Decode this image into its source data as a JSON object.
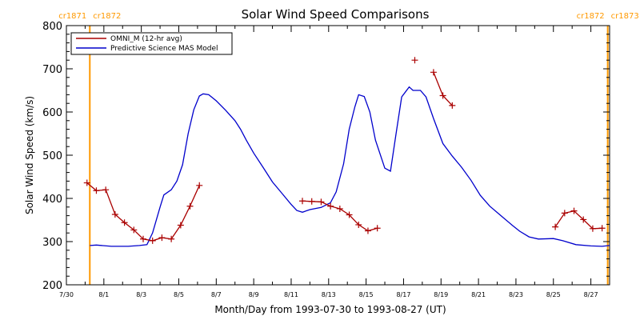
{
  "chart_data": {
    "type": "line",
    "title": "Solar Wind Speed Comparisons",
    "xlabel": "Month/Day from 1993-07-30 to 1993-08-27 (UT)",
    "ylabel": "Solar Wind Speed (km/s)",
    "x_unit": "day offset from 1993-07-30",
    "xlim": [
      0,
      29
    ],
    "ylim": [
      200,
      800
    ],
    "yticks": [
      200,
      300,
      400,
      500,
      600,
      700,
      800
    ],
    "xticks": [
      {
        "x": 0,
        "label": "7/30"
      },
      {
        "x": 2,
        "label": "8/1"
      },
      {
        "x": 4,
        "label": "8/3"
      },
      {
        "x": 6,
        "label": "8/5"
      },
      {
        "x": 8,
        "label": "8/7"
      },
      {
        "x": 10,
        "label": "8/9"
      },
      {
        "x": 12,
        "label": "8/11"
      },
      {
        "x": 14,
        "label": "8/13"
      },
      {
        "x": 16,
        "label": "8/15"
      },
      {
        "x": 18,
        "label": "8/17"
      },
      {
        "x": 20,
        "label": "8/19"
      },
      {
        "x": 22,
        "label": "8/21"
      },
      {
        "x": 24,
        "label": "8/23"
      },
      {
        "x": 26,
        "label": "8/25"
      },
      {
        "x": 28,
        "label": "8/27"
      }
    ],
    "legend": {
      "placement": "top-left"
    },
    "grid": false,
    "rotation_markers": [
      {
        "x": 1.25,
        "left_label": "cr1871",
        "right_label": "cr1872",
        "color": "#ff9900"
      },
      {
        "x": 28.9,
        "left_label": "cr1872",
        "right_label": "cr1873",
        "color": "#ff9900"
      }
    ],
    "series": [
      {
        "name": "OMNI_M (12-hr avg)",
        "color": "#aa0000",
        "marker": "plus",
        "segments": [
          [
            [
              1.1,
              436
            ],
            [
              1.6,
              418
            ],
            [
              2.1,
              420
            ],
            [
              2.6,
              363
            ],
            [
              3.1,
              344
            ],
            [
              3.6,
              327
            ],
            [
              4.1,
              306
            ],
            [
              4.6,
              302
            ],
            [
              5.1,
              309
            ],
            [
              5.6,
              306
            ],
            [
              6.1,
              338
            ],
            [
              6.6,
              382
            ],
            [
              7.1,
              430
            ]
          ],
          [
            [
              12.6,
              394
            ],
            [
              13.1,
              393
            ],
            [
              13.6,
              392
            ],
            [
              14.1,
              382
            ],
            [
              14.6,
              376
            ],
            [
              15.1,
              362
            ],
            [
              15.6,
              339
            ],
            [
              16.1,
              325
            ],
            [
              16.6,
              331
            ]
          ],
          [
            [
              18.6,
              720
            ]
          ],
          [
            [
              19.6,
              692
            ],
            [
              20.1,
              638
            ],
            [
              20.6,
              615
            ]
          ],
          [
            [
              26.1,
              334
            ],
            [
              26.6,
              366
            ],
            [
              27.1,
              371
            ],
            [
              27.6,
              351
            ],
            [
              28.1,
              330
            ],
            [
              28.6,
              331
            ]
          ]
        ]
      },
      {
        "name": "Predictive Science MAS Model",
        "color": "#0000cc",
        "marker": "none",
        "points": [
          [
            1.25,
            291
          ],
          [
            1.6,
            292
          ],
          [
            2.4,
            289
          ],
          [
            3.3,
            289
          ],
          [
            3.9,
            291
          ],
          [
            4.3,
            293
          ],
          [
            4.6,
            320
          ],
          [
            5.0,
            380
          ],
          [
            5.2,
            408
          ],
          [
            5.6,
            420
          ],
          [
            5.9,
            440
          ],
          [
            6.2,
            478
          ],
          [
            6.5,
            550
          ],
          [
            6.8,
            605
          ],
          [
            7.1,
            637
          ],
          [
            7.3,
            642
          ],
          [
            7.6,
            640
          ],
          [
            8.0,
            626
          ],
          [
            8.5,
            604
          ],
          [
            9.0,
            580
          ],
          [
            9.3,
            560
          ],
          [
            9.6,
            535
          ],
          [
            10.0,
            505
          ],
          [
            10.5,
            472
          ],
          [
            11.0,
            438
          ],
          [
            11.5,
            412
          ],
          [
            12.0,
            386
          ],
          [
            12.3,
            372
          ],
          [
            12.6,
            368
          ],
          [
            13.0,
            374
          ],
          [
            13.6,
            379
          ],
          [
            14.1,
            390
          ],
          [
            14.4,
            415
          ],
          [
            14.8,
            480
          ],
          [
            15.1,
            560
          ],
          [
            15.4,
            612
          ],
          [
            15.6,
            640
          ],
          [
            15.9,
            636
          ],
          [
            16.2,
            600
          ],
          [
            16.5,
            535
          ],
          [
            17.0,
            470
          ],
          [
            17.3,
            463
          ],
          [
            17.6,
            550
          ],
          [
            17.9,
            635
          ],
          [
            18.3,
            658
          ],
          [
            18.5,
            650
          ],
          [
            18.9,
            650
          ],
          [
            19.2,
            635
          ],
          [
            19.6,
            585
          ],
          [
            20.1,
            527
          ],
          [
            20.6,
            498
          ],
          [
            21.1,
            472
          ],
          [
            21.6,
            442
          ],
          [
            22.1,
            407
          ],
          [
            22.6,
            382
          ],
          [
            23.2,
            360
          ],
          [
            23.8,
            338
          ],
          [
            24.2,
            324
          ],
          [
            24.7,
            311
          ],
          [
            25.2,
            306
          ],
          [
            26.0,
            307
          ],
          [
            26.5,
            302
          ],
          [
            27.2,
            293
          ],
          [
            28.0,
            290
          ],
          [
            28.6,
            289
          ],
          [
            29.0,
            291
          ]
        ]
      }
    ]
  }
}
